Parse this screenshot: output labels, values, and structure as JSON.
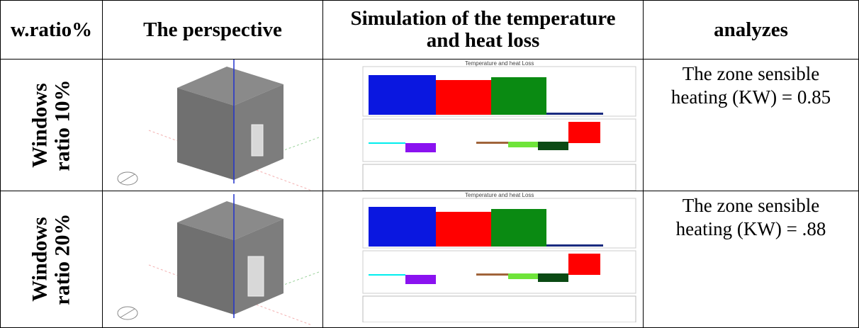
{
  "table": {
    "header": [
      "w.ratio%",
      "The perspective",
      "Simulation of the temperature and heat loss",
      "analyzes"
    ],
    "rows": [
      {
        "label": "Windows ratio 10%",
        "simulation_title": "Temperature and heat Loss",
        "analysis": "The zone sensible heating (KW) = 0.85"
      },
      {
        "label": "Windows ratio 20%",
        "simulation_title": "Temperature and heat Loss",
        "analysis": "The zone sensible heating (KW) = .88"
      }
    ]
  }
}
